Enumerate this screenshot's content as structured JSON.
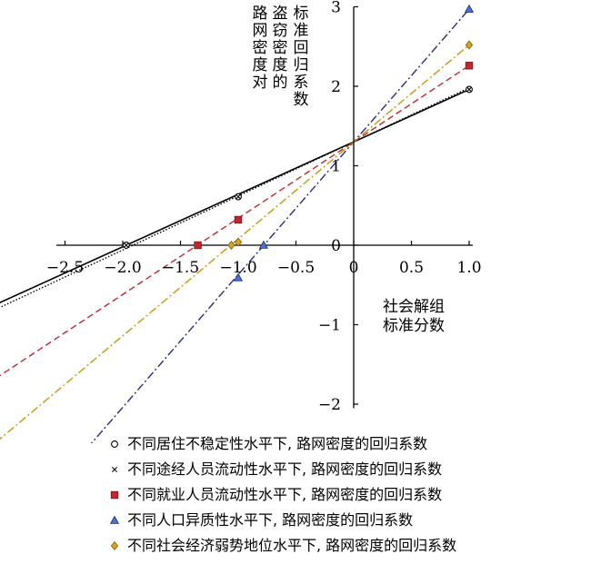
{
  "chart_data": {
    "type": "line",
    "xlabel_lines": [
      "社会解组",
      "标准分数"
    ],
    "ylabel_columns": [
      "路网密度对",
      "盗窃密度的",
      "标准回归系数"
    ],
    "xlim": [
      -3.0,
      1.1
    ],
    "ylim": [
      -2.1,
      3.0
    ],
    "x_ticks": [
      {
        "v": -2.5,
        "label": "−2.5"
      },
      {
        "v": -2.0,
        "label": "−2.0"
      },
      {
        "v": -1.5,
        "label": "−1.5"
      },
      {
        "v": -1.0,
        "label": "−1.0"
      },
      {
        "v": -0.5,
        "label": "−0.5"
      },
      {
        "v": 0,
        "label": "0"
      },
      {
        "v": 0.5,
        "label": "0.5"
      },
      {
        "v": 1.0,
        "label": "1.0"
      }
    ],
    "y_ticks": [
      {
        "v": -2,
        "label": "−2"
      },
      {
        "v": -1,
        "label": "−1"
      },
      {
        "v": 0,
        "label": "0"
      },
      {
        "v": 1,
        "label": "1"
      },
      {
        "v": 2,
        "label": "2"
      },
      {
        "v": 3,
        "label": "3"
      }
    ],
    "series": [
      {
        "name": "不同居住不稳定性水平下, 路网密度的回归系数",
        "intercept": 1.3,
        "slope": 0.66,
        "line_style": "solid",
        "color": "#000000",
        "marker": "circle",
        "marker_fill": "#ffffff",
        "points": [
          [
            -1.0,
            0.61
          ],
          [
            -1.97,
            0.0
          ],
          [
            1.0,
            1.96
          ]
        ]
      },
      {
        "name": "不同途经人员流动性水平下, 路网密度的回归系数",
        "intercept": 1.3,
        "slope": 0.68,
        "line_style": "dotted",
        "color": "#000000",
        "marker": "cross",
        "marker_fill": "#000000",
        "points": [
          [
            -1.0,
            0.61
          ],
          [
            -1.97,
            0.0
          ],
          [
            1.0,
            1.96
          ]
        ]
      },
      {
        "name": "不同就业人员流动性水平下, 路网密度的回归系数",
        "intercept": 1.3,
        "slope": 0.96,
        "line_style": "dashed",
        "color": "#c0282d",
        "marker": "square",
        "marker_fill": "#c0282d",
        "points": [
          [
            -1.0,
            0.32
          ],
          [
            -1.35,
            0.0
          ],
          [
            1.0,
            2.26
          ]
        ]
      },
      {
        "name": "不同人口异质性水平下, 路网密度的回归系数",
        "intercept": 1.3,
        "slope": 1.67,
        "line_style": "dashdot",
        "color": "#2a2a8a",
        "marker": "triangle",
        "marker_fill": "#4a6fd6",
        "points": [
          [
            -1.0,
            -0.41
          ],
          [
            -0.78,
            0.0
          ],
          [
            1.0,
            2.97
          ]
        ]
      },
      {
        "name": "不同社会经济弱势地位水平下, 路网密度的回归系数",
        "intercept": 1.3,
        "slope": 1.22,
        "line_style": "dashdot",
        "color": "#c8960c",
        "marker": "diamond",
        "marker_fill": "#d9a521",
        "points": [
          [
            -1.0,
            0.04
          ],
          [
            -1.06,
            0.0
          ],
          [
            1.0,
            2.52
          ]
        ]
      }
    ],
    "legend_position": "bottom",
    "grid": false
  }
}
